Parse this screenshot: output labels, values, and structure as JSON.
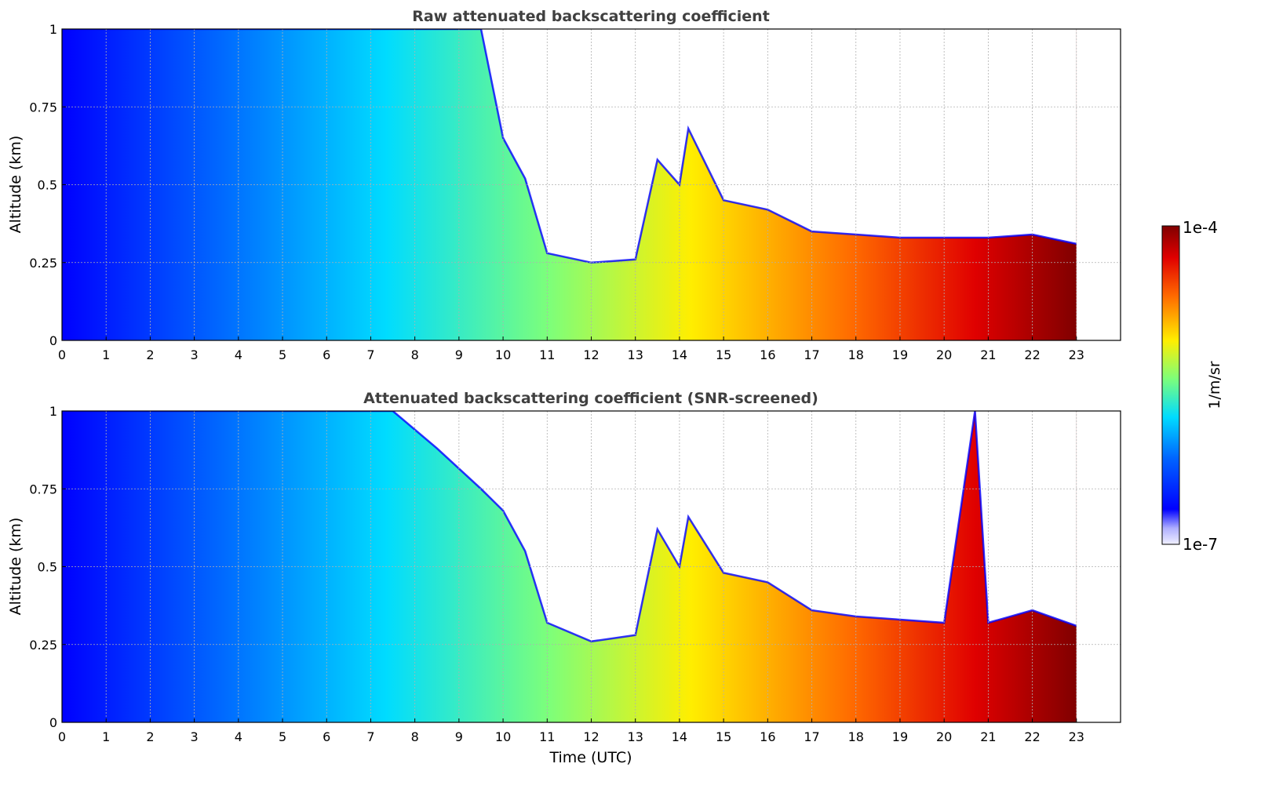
{
  "chart_data": [
    {
      "type": "heatmap",
      "title": "Raw attenuated backscattering coefficient",
      "xlabel": "",
      "ylabel": "Altitude (km)",
      "xlim": [
        0,
        24
      ],
      "ylim": [
        0,
        1
      ],
      "x_ticks": [
        "0",
        "1",
        "2",
        "3",
        "4",
        "5",
        "6",
        "7",
        "8",
        "9",
        "10",
        "11",
        "12",
        "13",
        "14",
        "15",
        "16",
        "17",
        "18",
        "19",
        "20",
        "21",
        "22",
        "23"
      ],
      "y_ticks": [
        "0",
        "0.25",
        "0.5",
        "0.75",
        "1"
      ],
      "grid": true,
      "data_end_hour": 23,
      "boundary_layer_top_km": [
        [
          0,
          1.0
        ],
        [
          9.5,
          1.0
        ],
        [
          10,
          0.65
        ],
        [
          10.5,
          0.52
        ],
        [
          11,
          0.28
        ],
        [
          12,
          0.25
        ],
        [
          13,
          0.26
        ],
        [
          13.5,
          0.58
        ],
        [
          14,
          0.5
        ],
        [
          14.2,
          0.68
        ],
        [
          15,
          0.45
        ],
        [
          16,
          0.42
        ],
        [
          17,
          0.35
        ],
        [
          18,
          0.34
        ],
        [
          19,
          0.33
        ],
        [
          20,
          0.33
        ],
        [
          21,
          0.33
        ],
        [
          22,
          0.34
        ],
        [
          23,
          0.31
        ]
      ]
    },
    {
      "type": "heatmap",
      "title": "Attenuated backscattering coefficient (SNR-screened)",
      "xlabel": "Time (UTC)",
      "ylabel": "Altitude (km)",
      "xlim": [
        0,
        24
      ],
      "ylim": [
        0,
        1
      ],
      "x_ticks": [
        "0",
        "1",
        "2",
        "3",
        "4",
        "5",
        "6",
        "7",
        "8",
        "9",
        "10",
        "11",
        "12",
        "13",
        "14",
        "15",
        "16",
        "17",
        "18",
        "19",
        "20",
        "21",
        "22",
        "23"
      ],
      "y_ticks": [
        "0",
        "0.25",
        "0.5",
        "0.75",
        "1"
      ],
      "grid": true,
      "data_end_hour": 23,
      "boundary_layer_top_km": [
        [
          0,
          1.0
        ],
        [
          7.5,
          1.0
        ],
        [
          8.5,
          0.88
        ],
        [
          9.5,
          0.75
        ],
        [
          10,
          0.68
        ],
        [
          10.5,
          0.55
        ],
        [
          11,
          0.32
        ],
        [
          12,
          0.26
        ],
        [
          13,
          0.28
        ],
        [
          13.5,
          0.62
        ],
        [
          14,
          0.5
        ],
        [
          14.2,
          0.66
        ],
        [
          15,
          0.48
        ],
        [
          16,
          0.45
        ],
        [
          17,
          0.36
        ],
        [
          18,
          0.34
        ],
        [
          19,
          0.33
        ],
        [
          20,
          0.32
        ],
        [
          20.7,
          1.0
        ],
        [
          21,
          0.32
        ],
        [
          22,
          0.36
        ],
        [
          23,
          0.31
        ]
      ]
    }
  ],
  "colorbar": {
    "label": "1/m/sr",
    "max_label": "1e-4",
    "min_label": "1e-7",
    "colormap": "jet",
    "scale": "log"
  }
}
